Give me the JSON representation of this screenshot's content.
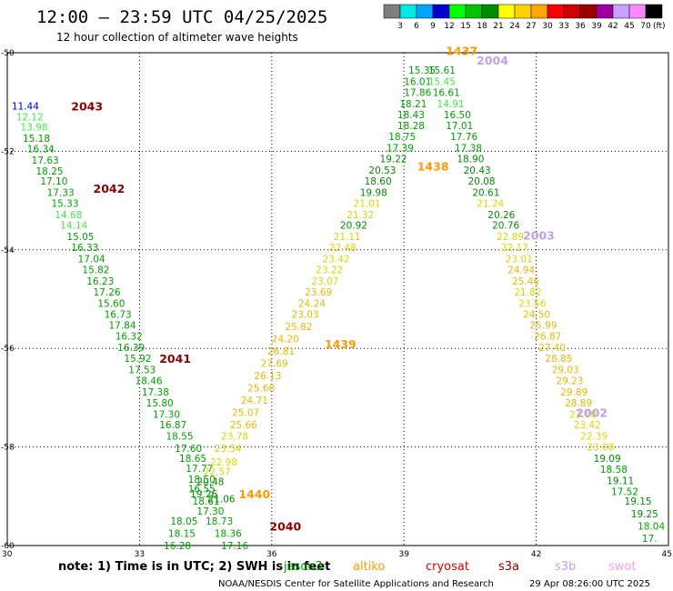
{
  "chart_data": {
    "type": "scatter",
    "title": "12:00 — 23:59 UTC 04/25/2025",
    "subtitle": "12 hour collection of altimeter wave heights",
    "xlim": [
      30,
      45
    ],
    "ylim": [
      -60,
      -50
    ],
    "x_ticks": [
      "30",
      "33",
      "36",
      "39",
      "42",
      "45"
    ],
    "y_ticks": [
      "-50",
      "-52",
      "-54",
      "-56",
      "-58",
      "-60"
    ],
    "grid": true,
    "colorbar": {
      "unit": "(ft)",
      "labels": [
        "3",
        "6",
        "9",
        "12",
        "15",
        "18",
        "21",
        "24",
        "27",
        "30",
        "33",
        "36",
        "39",
        "42",
        "45",
        "70"
      ],
      "colors": [
        "#7f7f7f",
        "#00e8e8",
        "#00a6ff",
        "#0000d0",
        "#00ff00",
        "#00c400",
        "#008c00",
        "#ffff00",
        "#ffd200",
        "#ffa500",
        "#ff0000",
        "#d00000",
        "#9c0000",
        "#a000a0",
        "#c8a0ff",
        "#ff88ff",
        "#000000"
      ]
    },
    "passes": [
      {
        "label": "2043",
        "x": 31.45,
        "y": -51.08,
        "color": "#8b0000"
      },
      {
        "label": "2042",
        "x": 31.95,
        "y": -52.75,
        "color": "#8b0000"
      },
      {
        "label": "2041",
        "x": 33.45,
        "y": -56.2,
        "color": "#8b0000"
      },
      {
        "label": "2040",
        "x": 35.95,
        "y": -59.6,
        "color": "#8b0000"
      },
      {
        "label": "1440",
        "x": 35.25,
        "y": -58.95,
        "color": "#ff9900"
      },
      {
        "label": "1439",
        "x": 37.2,
        "y": -55.9,
        "color": "#ff9900"
      },
      {
        "label": "1438",
        "x": 39.3,
        "y": -52.3,
        "color": "#ff9900"
      },
      {
        "label": "1437",
        "x": 39.95,
        "y": -49.95,
        "color": "#ff9900"
      },
      {
        "label": "2004",
        "x": 40.65,
        "y": -50.15,
        "color": "#c0a0e8"
      },
      {
        "label": "2003",
        "x": 41.7,
        "y": -53.7,
        "color": "#c0a0e8"
      },
      {
        "label": "2002",
        "x": 42.9,
        "y": -57.3,
        "color": "#c0a0e8"
      }
    ],
    "series": [
      {
        "name": "jason3",
        "color": "#00a000",
        "points": [
          {
            "x": 30.1,
            "y": -51.08,
            "v": "11.44",
            "c": "#0000d0"
          },
          {
            "x": 30.2,
            "y": -51.3,
            "v": "12.12",
            "c": "#44e844"
          },
          {
            "x": 30.3,
            "y": -51.5,
            "v": "13.98",
            "c": "#44e844"
          },
          {
            "x": 30.35,
            "y": -51.73,
            "v": "15.18"
          },
          {
            "x": 30.45,
            "y": -51.95,
            "v": "16.34"
          },
          {
            "x": 30.55,
            "y": -52.18,
            "v": "17.63"
          },
          {
            "x": 30.65,
            "y": -52.4,
            "v": "18.25"
          },
          {
            "x": 30.75,
            "y": -52.6,
            "v": "17.10"
          },
          {
            "x": 30.9,
            "y": -52.83,
            "v": "17.33"
          },
          {
            "x": 31.0,
            "y": -53.05,
            "v": "15.33"
          },
          {
            "x": 31.08,
            "y": -53.28,
            "v": "14.68",
            "c": "#44e844"
          },
          {
            "x": 31.2,
            "y": -53.5,
            "v": "14.14",
            "c": "#44e844"
          },
          {
            "x": 31.35,
            "y": -53.73,
            "v": "15.05"
          },
          {
            "x": 31.45,
            "y": -53.95,
            "v": "16.33"
          },
          {
            "x": 31.6,
            "y": -54.18,
            "v": "17.04"
          },
          {
            "x": 31.7,
            "y": -54.4,
            "v": "15.82"
          },
          {
            "x": 31.8,
            "y": -54.63,
            "v": "16.23"
          },
          {
            "x": 31.95,
            "y": -54.85,
            "v": "17.26"
          },
          {
            "x": 32.05,
            "y": -55.08,
            "v": "15.60"
          },
          {
            "x": 32.2,
            "y": -55.3,
            "v": "16.73"
          },
          {
            "x": 32.3,
            "y": -55.53,
            "v": "17.84"
          },
          {
            "x": 32.45,
            "y": -55.75,
            "v": "16.32"
          },
          {
            "x": 32.5,
            "y": -55.98,
            "v": "16.39"
          },
          {
            "x": 32.65,
            "y": -56.2,
            "v": "15.92"
          },
          {
            "x": 32.75,
            "y": -56.43,
            "v": "17.53"
          },
          {
            "x": 32.9,
            "y": -56.65,
            "v": "18.46"
          },
          {
            "x": 33.05,
            "y": -56.88,
            "v": "17.38"
          },
          {
            "x": 33.15,
            "y": -57.1,
            "v": "15.80"
          },
          {
            "x": 33.3,
            "y": -57.33,
            "v": "17.30"
          },
          {
            "x": 33.45,
            "y": -57.55,
            "v": "16.87"
          },
          {
            "x": 33.6,
            "y": -57.78,
            "v": "18.55"
          },
          {
            "x": 33.8,
            "y": -58.03,
            "v": "17.60"
          },
          {
            "x": 33.9,
            "y": -58.23,
            "v": "18.65"
          },
          {
            "x": 34.05,
            "y": -58.43,
            "v": "17.77"
          },
          {
            "x": 34.1,
            "y": -58.65,
            "v": "18.50"
          },
          {
            "x": 34.1,
            "y": -58.85,
            "v": "16.55"
          },
          {
            "x": 34.2,
            "y": -59.1,
            "v": "18.61"
          },
          {
            "x": 34.3,
            "y": -59.3,
            "v": "17.30"
          },
          {
            "x": 34.5,
            "y": -59.5,
            "v": "18.73"
          },
          {
            "x": 33.7,
            "y": -59.5,
            "v": "18.05"
          },
          {
            "x": 33.65,
            "y": -59.75,
            "v": "18.15"
          },
          {
            "x": 33.55,
            "y": -60.0,
            "v": "16.28"
          },
          {
            "x": 34.7,
            "y": -59.75,
            "v": "18.36"
          },
          {
            "x": 34.85,
            "y": -60.0,
            "v": "17.16"
          }
        ]
      },
      {
        "name": "altika",
        "color": "#ff9900",
        "points": [
          {
            "x": 34.3,
            "y": -58.7,
            "v": "20.48",
            "c": "#008c00"
          },
          {
            "x": 34.15,
            "y": -58.95,
            "v": "19.26",
            "c": "#008c00"
          },
          {
            "x": 34.55,
            "y": -59.05,
            "v": "21.06",
            "c": "#008c00"
          },
          {
            "x": 34.45,
            "y": -58.5,
            "v": "22.57",
            "c": "#d8d800"
          },
          {
            "x": 34.6,
            "y": -58.3,
            "v": "22.98",
            "c": "#d8d800"
          },
          {
            "x": 34.7,
            "y": -58.03,
            "v": "23.54",
            "c": "#d8d800"
          },
          {
            "x": 34.85,
            "y": -57.78,
            "v": "23.78",
            "c": "#d8d800"
          },
          {
            "x": 35.05,
            "y": -57.55,
            "v": "25.66",
            "c": "#e8b800"
          },
          {
            "x": 35.1,
            "y": -57.3,
            "v": "25.07",
            "c": "#e8b800"
          },
          {
            "x": 35.3,
            "y": -57.05,
            "v": "24.71",
            "c": "#e8b800"
          },
          {
            "x": 35.45,
            "y": -56.8,
            "v": "25.60",
            "c": "#e8b800"
          },
          {
            "x": 35.6,
            "y": -56.55,
            "v": "26.13",
            "c": "#e8b800"
          },
          {
            "x": 35.75,
            "y": -56.3,
            "v": "27.69",
            "c": "#e8b800"
          },
          {
            "x": 35.9,
            "y": -56.05,
            "v": "26.81",
            "c": "#e8b800"
          },
          {
            "x": 36.0,
            "y": -55.8,
            "v": "24.20",
            "c": "#e8b800"
          },
          {
            "x": 36.3,
            "y": -55.55,
            "v": "25.82",
            "c": "#e8b800"
          },
          {
            "x": 36.45,
            "y": -55.3,
            "v": "23.03",
            "c": "#e8b800"
          },
          {
            "x": 36.6,
            "y": -55.08,
            "v": "24.24",
            "c": "#e8b800"
          },
          {
            "x": 36.75,
            "y": -54.85,
            "v": "23.69",
            "c": "#e8b800"
          },
          {
            "x": 36.9,
            "y": -54.63,
            "v": "23.07",
            "c": "#d8d800"
          },
          {
            "x": 37.0,
            "y": -54.4,
            "v": "23.22",
            "c": "#d8d800"
          },
          {
            "x": 37.15,
            "y": -54.18,
            "v": "23.42",
            "c": "#d8d800"
          },
          {
            "x": 37.3,
            "y": -53.95,
            "v": "22.48",
            "c": "#d8d800"
          },
          {
            "x": 37.4,
            "y": -53.73,
            "v": "21.11",
            "c": "#d8d800"
          },
          {
            "x": 37.55,
            "y": -53.5,
            "v": "20.92",
            "c": "#008c00"
          },
          {
            "x": 37.7,
            "y": -53.28,
            "v": "21.32",
            "c": "#d8d800"
          },
          {
            "x": 37.85,
            "y": -53.05,
            "v": "21.01",
            "c": "#d8d800"
          },
          {
            "x": 38.0,
            "y": -52.83,
            "v": "19.98",
            "c": "#008c00"
          },
          {
            "x": 38.1,
            "y": -52.6,
            "v": "18.60",
            "c": "#008c00"
          },
          {
            "x": 38.2,
            "y": -52.38,
            "v": "20.53",
            "c": "#008c00"
          },
          {
            "x": 38.45,
            "y": -52.15,
            "v": "19.22",
            "c": "#008c00"
          },
          {
            "x": 38.6,
            "y": -51.93,
            "v": "17.39",
            "c": "#00a000"
          },
          {
            "x": 38.65,
            "y": -51.7,
            "v": "18.75",
            "c": "#00a000"
          },
          {
            "x": 38.85,
            "y": -51.48,
            "v": "18.28",
            "c": "#00a000"
          },
          {
            "x": 38.85,
            "y": -51.25,
            "v": "18.43",
            "c": "#00a000"
          },
          {
            "x": 38.9,
            "y": -51.03,
            "v": "18.21",
            "c": "#00a000"
          },
          {
            "x": 39.0,
            "y": -50.8,
            "v": "17.86",
            "c": "#00a000"
          },
          {
            "x": 39.0,
            "y": -50.58,
            "v": "16.01",
            "c": "#00a000"
          },
          {
            "x": 39.1,
            "y": -50.35,
            "v": "15.35",
            "c": "#00a000"
          }
        ]
      },
      {
        "name": "s3b",
        "color": "#c0a0e8",
        "points": [
          {
            "x": 39.55,
            "y": -50.35,
            "v": "15.61",
            "c": "#00a000"
          },
          {
            "x": 39.55,
            "y": -50.58,
            "v": "15.45",
            "c": "#44e844"
          },
          {
            "x": 39.65,
            "y": -50.8,
            "v": "16.61",
            "c": "#00a000"
          },
          {
            "x": 39.75,
            "y": -51.03,
            "v": "14.91",
            "c": "#44e844"
          },
          {
            "x": 39.9,
            "y": -51.25,
            "v": "16.50",
            "c": "#00a000"
          },
          {
            "x": 39.95,
            "y": -51.48,
            "v": "17.01",
            "c": "#00a000"
          },
          {
            "x": 40.05,
            "y": -51.7,
            "v": "17.76",
            "c": "#00a000"
          },
          {
            "x": 40.15,
            "y": -51.93,
            "v": "17.38",
            "c": "#00a000"
          },
          {
            "x": 40.2,
            "y": -52.15,
            "v": "18.90",
            "c": "#008c00"
          },
          {
            "x": 40.35,
            "y": -52.38,
            "v": "20.43",
            "c": "#008c00"
          },
          {
            "x": 40.45,
            "y": -52.6,
            "v": "20.08",
            "c": "#008c00"
          },
          {
            "x": 40.55,
            "y": -52.83,
            "v": "20.61",
            "c": "#008c00"
          },
          {
            "x": 40.65,
            "y": -53.05,
            "v": "21.24",
            "c": "#d8d800"
          },
          {
            "x": 40.9,
            "y": -53.28,
            "v": "20.26",
            "c": "#008c00"
          },
          {
            "x": 41.0,
            "y": -53.5,
            "v": "20.76",
            "c": "#008c00"
          },
          {
            "x": 41.1,
            "y": -53.73,
            "v": "22.89",
            "c": "#d8d800"
          },
          {
            "x": 41.2,
            "y": -53.95,
            "v": "22.17",
            "c": "#d8d800"
          },
          {
            "x": 41.3,
            "y": -54.18,
            "v": "23.01",
            "c": "#d8d800"
          },
          {
            "x": 41.35,
            "y": -54.4,
            "v": "24.94",
            "c": "#e8b800"
          },
          {
            "x": 41.45,
            "y": -54.63,
            "v": "25.46",
            "c": "#e8b800"
          },
          {
            "x": 41.5,
            "y": -54.85,
            "v": "21.82",
            "c": "#d8d800"
          },
          {
            "x": 41.6,
            "y": -55.08,
            "v": "23.56",
            "c": "#d8d800"
          },
          {
            "x": 41.7,
            "y": -55.3,
            "v": "24.50",
            "c": "#e8b800"
          },
          {
            "x": 41.85,
            "y": -55.53,
            "v": "25.99",
            "c": "#e8b800"
          },
          {
            "x": 41.95,
            "y": -55.75,
            "v": "26.87",
            "c": "#e8b800"
          },
          {
            "x": 42.05,
            "y": -55.98,
            "v": "27.40",
            "c": "#e8b800"
          },
          {
            "x": 42.2,
            "y": -56.2,
            "v": "28.85",
            "c": "#e8b800"
          },
          {
            "x": 42.35,
            "y": -56.43,
            "v": "29.03",
            "c": "#e8b800"
          },
          {
            "x": 42.45,
            "y": -56.65,
            "v": "29.23",
            "c": "#e8b800"
          },
          {
            "x": 42.55,
            "y": -56.88,
            "v": "29.89",
            "c": "#e8b800"
          },
          {
            "x": 42.65,
            "y": -57.1,
            "v": "28.89",
            "c": "#e8b800"
          },
          {
            "x": 42.75,
            "y": -57.33,
            "v": "23.60",
            "c": "#d8d800"
          },
          {
            "x": 42.85,
            "y": -57.55,
            "v": "23.42",
            "c": "#d8d800"
          },
          {
            "x": 43.0,
            "y": -57.78,
            "v": "22.39",
            "c": "#d8d800"
          },
          {
            "x": 43.15,
            "y": -58.0,
            "v": "23.08",
            "c": "#d8d800"
          },
          {
            "x": 43.3,
            "y": -58.23,
            "v": "19.09",
            "c": "#008c00"
          },
          {
            "x": 43.45,
            "y": -58.45,
            "v": "18.58",
            "c": "#00a000"
          },
          {
            "x": 43.6,
            "y": -58.68,
            "v": "19.11",
            "c": "#008c00"
          },
          {
            "x": 43.7,
            "y": -58.9,
            "v": "17.52",
            "c": "#00a000"
          },
          {
            "x": 44.0,
            "y": -59.1,
            "v": "19.15",
            "c": "#008c00"
          },
          {
            "x": 44.15,
            "y": -59.35,
            "v": "19.25",
            "c": "#008c00"
          },
          {
            "x": 44.3,
            "y": -59.6,
            "v": "18.04",
            "c": "#00a000"
          },
          {
            "x": 44.4,
            "y": -59.85,
            "v": "17.",
            "c": "#00a000"
          }
        ]
      }
    ]
  },
  "footer": {
    "note": "note: 1) Time is in UTC; 2) SWH is in feet",
    "satellites": [
      {
        "name": "jason3",
        "color": "#00a000"
      },
      {
        "name": "altiko",
        "color": "#ff9900"
      },
      {
        "name": "cryosat",
        "color": "#e00000"
      },
      {
        "name": "s3a",
        "color": "#8b0000"
      },
      {
        "name": "s3b",
        "color": "#c0a0e8"
      },
      {
        "name": "swot",
        "color": "#f0a0f0"
      }
    ],
    "credit": "NOAA/NESDIS Center for Satellite Applications and Research",
    "timestamp": "29 Apr 08:26:00 UTC 2025"
  }
}
